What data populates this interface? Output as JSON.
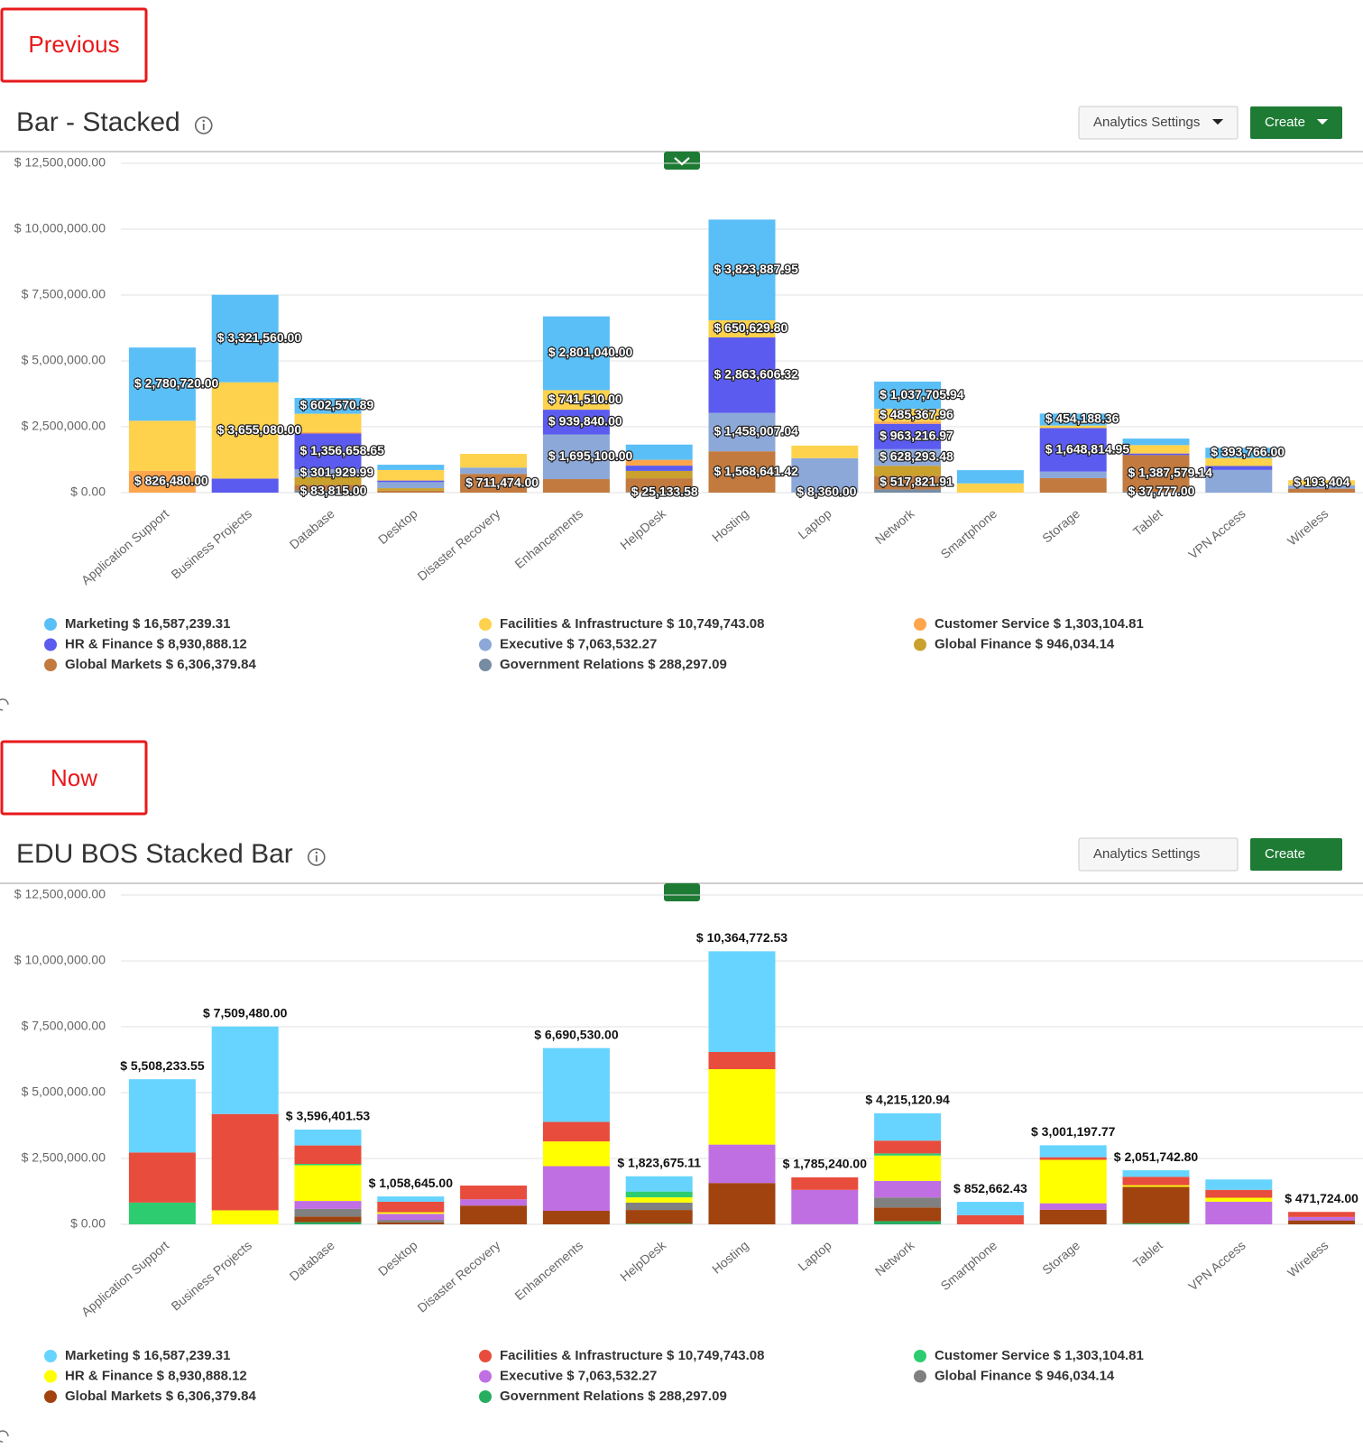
{
  "previous_label": "Previous",
  "now_label": "Now",
  "buttons": {
    "analytics": "Analytics Settings",
    "create": "Create"
  },
  "chart_data": [
    {
      "type": "stacked_bar",
      "title": "Bar - Stacked",
      "categories": [
        "Application Support",
        "Business Projects",
        "Database",
        "Desktop",
        "Disaster Recovery",
        "Enhancements",
        "HelpDesk",
        "Hosting",
        "Laptop",
        "Network",
        "Smartphone",
        "Storage",
        "Tablet",
        "VPN Access",
        "Wireless"
      ],
      "ylim": [
        0,
        12500000
      ],
      "yticks": [
        {
          "value": 0,
          "label": "$ 0.00"
        },
        {
          "value": 2500000,
          "label": "$ 2,500,000.00"
        },
        {
          "value": 5000000,
          "label": "$ 5,000,000.00"
        },
        {
          "value": 7500000,
          "label": "$ 7,500,000.00"
        },
        {
          "value": 10000000,
          "label": "$ 10,000,000.00"
        },
        {
          "value": 12500000,
          "label": "$ 12,500,000.00"
        }
      ],
      "grid": true,
      "series": [
        {
          "name": "Marketing $ 16,587,239.31",
          "color": "#5bbff7",
          "values": [
            2780720,
            3321560,
            602570.89,
            200000,
            0,
            2801040,
            578541.53,
            3823887.95,
            0,
            1037705.94,
            502662.43,
            454188.36,
            246386.66,
            393766,
            0
          ],
          "value_labels": [
            "$ 2,780,720.00",
            "$ 3,321,560.00",
            "$ 602,570.89",
            null,
            null,
            "$ 2,801,040.00",
            null,
            "$ 3,823,887.95",
            null,
            "$ 1,037,705.94",
            null,
            "$ 454,188.36",
            null,
            "$ 393,766.00",
            null
          ]
        },
        {
          "name": "Facilities & Infrastructure $ 10,749,743.08",
          "color": "#ffd24d",
          "values": [
            1901033.55,
            3655080,
            700000,
            400000,
            520000,
            741510,
            0,
            650629.8,
            476880,
            485367.96,
            350000,
            98194.46,
            320000,
            300000,
            193404
          ],
          "value_labels": [
            null,
            "$ 3,655,080.00",
            null,
            null,
            null,
            "$ 741,510.00",
            null,
            "$ 650,629.80",
            null,
            "$ 485,367.96",
            null,
            null,
            null,
            null,
            "$ 193,404"
          ]
        },
        {
          "name": "Customer Service $ 1,303,104.81",
          "color": "#ffa64d",
          "values": [
            826480,
            0,
            50000,
            0,
            0,
            0,
            220000,
            0,
            0,
            80000,
            0,
            0,
            0,
            0,
            0
          ],
          "value_labels": [
            "$ 826,480.00",
            null,
            null,
            null,
            null,
            null,
            null,
            null,
            null,
            null,
            null,
            null,
            null,
            null,
            null
          ]
        },
        {
          "name": "HR & Finance $ 8,930,888.12",
          "color": "#5b5bf0",
          "values": [
            0,
            532840,
            1356658.65,
            60000,
            0,
            939840,
            200000,
            2863606.32,
            0,
            963216.97,
            0,
            1648814.95,
            60000,
            150000,
            0
          ],
          "value_labels": [
            null,
            null,
            "$ 1,356,658.65",
            null,
            null,
            "$ 939,840.00",
            null,
            "$ 2,863,606.32",
            null,
            "$ 963,216.97",
            null,
            "$ 1,648,814.95",
            null,
            null,
            null
          ]
        },
        {
          "name": "Executive $ 7,063,532.27",
          "color": "#8ca8d9",
          "values": [
            0,
            0,
            301929.99,
            230000,
            240000,
            1695100,
            0,
            1458007.04,
            1300000,
            628293.48,
            0,
            250000,
            0,
            860000,
            128320
          ],
          "value_labels": [
            null,
            null,
            "$ 301,929.99",
            null,
            null,
            "$ 1,695,100.00",
            null,
            "$ 1,458,007.04",
            null,
            "$ 628,293.48",
            null,
            null,
            null,
            null,
            null
          ]
        },
        {
          "name": "Global Finance $ 946,034.14",
          "color": "#c9a12c",
          "values": [
            0,
            0,
            290000,
            90000,
            0,
            0,
            280000,
            0,
            0,
            380000,
            0,
            0,
            0,
            0,
            0
          ]
        },
        {
          "name": "Global Markets $ 6,306,379.84",
          "color": "#c27a3e",
          "values": [
            0,
            0,
            211427,
            78645,
            711474,
            513040,
            520000,
            1568641.42,
            0,
            517821.91,
            0,
            550000,
            1387579.14,
            0,
            150000
          ],
          "value_labels": [
            null,
            null,
            null,
            null,
            "$ 711,474.00",
            null,
            null,
            "$ 1,568,641.42",
            null,
            "$ 517,821.91",
            null,
            null,
            "$ 1,387,579.14",
            null,
            null
          ]
        },
        {
          "name": "Government Relations $ 288,297.09",
          "color": "#778ca3",
          "values": [
            0,
            0,
            83815,
            0,
            0,
            0,
            25133.58,
            0,
            8360,
            122714.68,
            0,
            0,
            37777,
            0,
            0
          ],
          "value_labels": [
            null,
            null,
            "$ 83,815.00",
            null,
            null,
            null,
            "$ 25,133.58",
            null,
            "$ 8,360.00",
            null,
            null,
            null,
            "$ 37,777.00",
            null,
            null
          ]
        }
      ]
    },
    {
      "type": "stacked_bar",
      "title": "EDU BOS Stacked Bar",
      "categories": [
        "Application Support",
        "Business Projects",
        "Database",
        "Desktop",
        "Disaster Recovery",
        "Enhancements",
        "HelpDesk",
        "Hosting",
        "Laptop",
        "Network",
        "Smartphone",
        "Storage",
        "Tablet",
        "VPN Access",
        "Wireless"
      ],
      "ylim": [
        0,
        12500000
      ],
      "yticks": [
        {
          "value": 0,
          "label": "$ 0.00"
        },
        {
          "value": 2500000,
          "label": "$ 2,500,000.00"
        },
        {
          "value": 5000000,
          "label": "$ 5,000,000.00"
        },
        {
          "value": 7500000,
          "label": "$ 7,500,000.00"
        },
        {
          "value": 10000000,
          "label": "$ 10,000,000.00"
        },
        {
          "value": 12500000,
          "label": "$ 12,500,000.00"
        }
      ],
      "grid": true,
      "totals": [
        5508233.55,
        7509480,
        3596401.53,
        1058645,
        null,
        6690530,
        1823675.11,
        10364772.53,
        1785240,
        4215120.94,
        852662.43,
        3001197.77,
        2051742.8,
        null,
        471724
      ],
      "total_labels": [
        "$ 5,508,233.55",
        "$ 7,509,480.00",
        "$ 3,596,401.53",
        "$ 1,058,645.00",
        null,
        "$ 6,690,530.00",
        "$ 1,823,675.11",
        "$ 10,364,772.53",
        "$ 1,785,240.00",
        "$ 4,215,120.94",
        "$ 852,662.43",
        "$ 3,001,197.77",
        "$ 2,051,742.80",
        null,
        "$ 471,724.00"
      ],
      "series": [
        {
          "name": "Marketing $ 16,587,239.31",
          "color": "#66d4ff",
          "values": [
            2780720,
            3321560,
            602570.89,
            200000,
            0,
            2801040,
            578541.53,
            3823887.95,
            0,
            1037705.94,
            502662.43,
            454188.36,
            246386.66,
            393766,
            0
          ]
        },
        {
          "name": "Facilities & Infrastructure $ 10,749,743.08",
          "color": "#e84c3d",
          "values": [
            1901033.55,
            3655080,
            700000,
            400000,
            520000,
            741510,
            0,
            650629.8,
            476880,
            485367.96,
            350000,
            98194.46,
            320000,
            300000,
            193404
          ]
        },
        {
          "name": "Customer Service $ 1,303,104.81",
          "color": "#2ecc71",
          "values": [
            826480,
            0,
            50000,
            0,
            0,
            0,
            220000,
            0,
            0,
            80000,
            0,
            0,
            0,
            0,
            0
          ]
        },
        {
          "name": "HR & Finance $ 8,930,888.12",
          "color": "#ffff00",
          "values": [
            0,
            532840,
            1356658.65,
            60000,
            0,
            939840,
            200000,
            2863606.32,
            0,
            963216.97,
            0,
            1648814.95,
            60000,
            150000,
            0
          ]
        },
        {
          "name": "Executive $ 7,063,532.27",
          "color": "#c06fe3",
          "values": [
            0,
            0,
            301929.99,
            230000,
            240000,
            1695100,
            0,
            1458007.04,
            1300000,
            628293.48,
            0,
            250000,
            0,
            860000,
            128320
          ]
        },
        {
          "name": "Global Finance $ 946,034.14",
          "color": "#808080",
          "values": [
            0,
            0,
            290000,
            90000,
            0,
            0,
            280000,
            0,
            0,
            380000,
            0,
            0,
            0,
            0,
            0
          ]
        },
        {
          "name": "Global Markets $ 6,306,379.84",
          "color": "#a0430e",
          "values": [
            0,
            0,
            211427,
            78645,
            711474,
            513040,
            520000,
            1568641.42,
            0,
            517821.91,
            0,
            550000,
            1387579.14,
            0,
            150000
          ]
        },
        {
          "name": "Government Relations $ 288,297.09",
          "color": "#27ae60",
          "values": [
            0,
            0,
            83815,
            0,
            0,
            0,
            25133.58,
            0,
            8360,
            122714.68,
            0,
            0,
            37777,
            0,
            0
          ]
        }
      ]
    }
  ]
}
